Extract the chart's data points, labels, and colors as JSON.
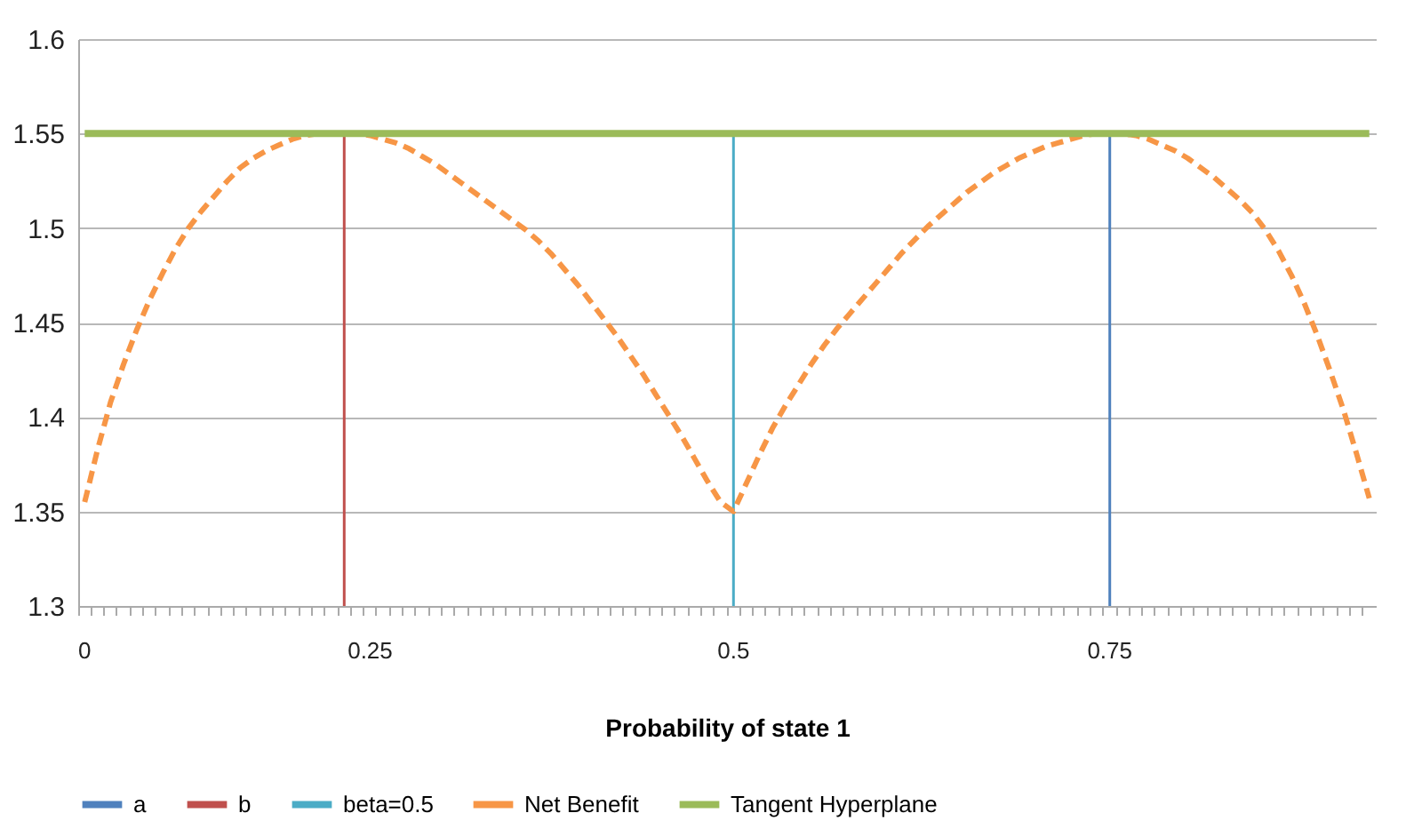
{
  "chart_data": {
    "type": "bar",
    "xlabel": "Probability of state 1",
    "categories": [
      "0",
      null,
      null,
      null,
      null,
      null,
      null,
      null,
      null,
      null,
      null,
      null,
      null,
      null,
      null,
      null,
      null,
      null,
      null,
      null,
      null,
      null,
      "0.25",
      null,
      null,
      null,
      null,
      null,
      null,
      null,
      null,
      null,
      null,
      null,
      null,
      null,
      null,
      null,
      null,
      null,
      null,
      null,
      null,
      null,
      null,
      null,
      null,
      null,
      null,
      null,
      "0.5",
      null,
      null,
      null,
      null,
      null,
      null,
      null,
      null,
      null,
      null,
      null,
      null,
      null,
      null,
      null,
      null,
      null,
      null,
      null,
      null,
      null,
      null,
      null,
      null,
      null,
      null,
      null,
      null,
      "0.75",
      null,
      null,
      null,
      null,
      null,
      null,
      null,
      null,
      null,
      null,
      null,
      null,
      null,
      null,
      null,
      null,
      null,
      null,
      null,
      null
    ],
    "series": [
      {
        "name": "a",
        "color": "#4f81bd",
        "values": [
          null,
          null,
          null,
          null,
          null,
          null,
          null,
          null,
          null,
          null,
          null,
          null,
          null,
          null,
          null,
          null,
          null,
          null,
          null,
          null,
          null,
          null,
          null,
          null,
          null,
          null,
          null,
          null,
          null,
          null,
          null,
          null,
          null,
          null,
          null,
          null,
          null,
          null,
          null,
          null,
          null,
          null,
          null,
          null,
          null,
          null,
          null,
          null,
          null,
          null,
          null,
          null,
          null,
          null,
          null,
          null,
          null,
          null,
          null,
          null,
          null,
          null,
          null,
          null,
          null,
          null,
          null,
          null,
          null,
          null,
          null,
          null,
          null,
          null,
          null,
          null,
          null,
          null,
          null,
          1.55,
          null,
          null,
          null,
          null,
          null,
          null,
          null,
          null,
          null,
          null,
          null,
          null,
          null,
          null,
          null,
          null,
          null,
          null,
          null,
          null
        ]
      },
      {
        "name": "b",
        "color": "#c0504d",
        "values": [
          null,
          null,
          null,
          null,
          null,
          null,
          null,
          null,
          null,
          null,
          null,
          null,
          null,
          null,
          null,
          null,
          null,
          null,
          null,
          null,
          1.55,
          null,
          null,
          null,
          null,
          null,
          null,
          null,
          null,
          null,
          null,
          null,
          null,
          null,
          null,
          null,
          null,
          null,
          null,
          null,
          null,
          null,
          null,
          null,
          null,
          null,
          null,
          null,
          null,
          null,
          null,
          null,
          null,
          null,
          null,
          null,
          null,
          null,
          null,
          null,
          null,
          null,
          null,
          null,
          null,
          null,
          null,
          null,
          null,
          null,
          null,
          null,
          null,
          null,
          null,
          null,
          null,
          null,
          null,
          null,
          null,
          null,
          null,
          null,
          null,
          null,
          null,
          null,
          null,
          null,
          null,
          null,
          null,
          null,
          null,
          null,
          null,
          null,
          null,
          null
        ]
      },
      {
        "name": "beta=0.5",
        "color": "#4bacc6",
        "values": [
          null,
          null,
          null,
          null,
          null,
          null,
          null,
          null,
          null,
          null,
          null,
          null,
          null,
          null,
          null,
          null,
          null,
          null,
          null,
          null,
          null,
          null,
          null,
          null,
          null,
          null,
          null,
          null,
          null,
          null,
          null,
          null,
          null,
          null,
          null,
          null,
          null,
          null,
          null,
          null,
          null,
          null,
          null,
          null,
          null,
          null,
          null,
          null,
          null,
          null,
          1.55,
          null,
          null,
          null,
          null,
          null,
          null,
          null,
          null,
          null,
          null,
          null,
          null,
          null,
          null,
          null,
          null,
          null,
          null,
          null,
          null,
          null,
          null,
          null,
          null,
          null,
          null,
          null,
          null,
          null,
          null,
          null,
          null,
          null,
          null,
          null,
          null,
          null,
          null,
          null,
          null,
          null,
          null,
          null,
          null,
          null,
          null,
          null,
          null,
          null
        ]
      },
      {
        "name": "Net Benefit",
        "type": "line",
        "line_style": "dashed",
        "color": "#f79646",
        "values": [
          1.355,
          1.383,
          1.408,
          1.428,
          1.446,
          1.462,
          1.476,
          1.489,
          1.5,
          1.509,
          1.517,
          1.525,
          1.532,
          1.537,
          1.541,
          1.544,
          1.547,
          1.549,
          1.55,
          1.55,
          1.55,
          1.55,
          1.549,
          1.547,
          1.545,
          1.542,
          1.538,
          1.534,
          1.529,
          1.524,
          1.519,
          1.514,
          1.509,
          1.504,
          1.499,
          1.493,
          1.486,
          1.478,
          1.47,
          1.461,
          1.452,
          1.443,
          1.433,
          1.423,
          1.412,
          1.401,
          1.39,
          1.378,
          1.366,
          1.355,
          1.35,
          1.365,
          1.38,
          1.394,
          1.406,
          1.417,
          1.428,
          1.438,
          1.447,
          1.455,
          1.463,
          1.471,
          1.479,
          1.487,
          1.494,
          1.501,
          1.507,
          1.513,
          1.519,
          1.524,
          1.529,
          1.533,
          1.537,
          1.54,
          1.543,
          1.545,
          1.547,
          1.549,
          1.55,
          1.55,
          1.55,
          1.549,
          1.547,
          1.544,
          1.541,
          1.537,
          1.532,
          1.527,
          1.521,
          1.515,
          1.508,
          1.499,
          1.488,
          1.475,
          1.46,
          1.443,
          1.424,
          1.404,
          1.381,
          1.357
        ]
      },
      {
        "name": "Tangent Hyperplane",
        "type": "line",
        "line_style": "solid",
        "color": "#9bbb59",
        "values": [
          1.55,
          1.55,
          1.55,
          1.55,
          1.55,
          1.55,
          1.55,
          1.55,
          1.55,
          1.55,
          1.55,
          1.55,
          1.55,
          1.55,
          1.55,
          1.55,
          1.55,
          1.55,
          1.55,
          1.55,
          1.55,
          1.55,
          1.55,
          1.55,
          1.55,
          1.55,
          1.55,
          1.55,
          1.55,
          1.55,
          1.55,
          1.55,
          1.55,
          1.55,
          1.55,
          1.55,
          1.55,
          1.55,
          1.55,
          1.55,
          1.55,
          1.55,
          1.55,
          1.55,
          1.55,
          1.55,
          1.55,
          1.55,
          1.55,
          1.55,
          1.55,
          1.55,
          1.55,
          1.55,
          1.55,
          1.55,
          1.55,
          1.55,
          1.55,
          1.55,
          1.55,
          1.55,
          1.55,
          1.55,
          1.55,
          1.55,
          1.55,
          1.55,
          1.55,
          1.55,
          1.55,
          1.55,
          1.55,
          1.55,
          1.55,
          1.55,
          1.55,
          1.55,
          1.55,
          1.55,
          1.55,
          1.55,
          1.55,
          1.55,
          1.55,
          1.55,
          1.55,
          1.55,
          1.55,
          1.55,
          1.55,
          1.55,
          1.55,
          1.55,
          1.55,
          1.55,
          1.55,
          1.55,
          1.55,
          1.55
        ]
      }
    ],
    "ylim": [
      1.3,
      1.6
    ],
    "yticks": [
      1.3,
      1.35,
      1.4,
      1.45,
      1.5,
      1.55,
      1.6
    ],
    "grid": "y",
    "legend": "bottom"
  }
}
